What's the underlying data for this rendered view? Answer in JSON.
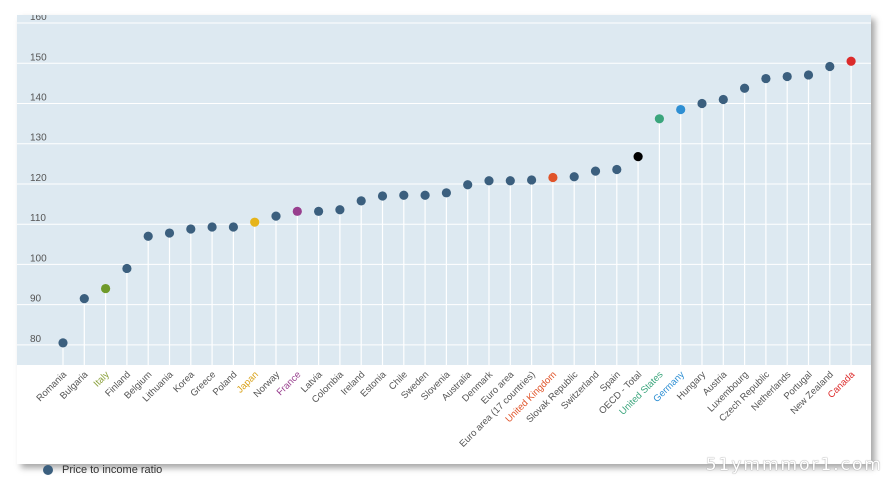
{
  "chart_data": {
    "type": "scatter",
    "title": "",
    "xlabel": "",
    "ylabel": "",
    "ylim": [
      75,
      162
    ],
    "yticks": [
      80,
      90,
      100,
      110,
      120,
      130,
      140,
      150,
      160
    ],
    "grid": true,
    "legend_position": "bottom-left",
    "series": [
      {
        "name": "Price to income ratio",
        "color": "#3b5f7e",
        "categories": [
          "Romania",
          "Bulgaria",
          "Italy",
          "Finland",
          "Belgium",
          "Lithuania",
          "Korea",
          "Greece",
          "Poland",
          "Japan",
          "Norway",
          "France",
          "Latvia",
          "Colombia",
          "Ireland",
          "Estonia",
          "Chile",
          "Sweden",
          "Slovenia",
          "Australia",
          "Denmark",
          "Euro area",
          "Euro area (17 countries)",
          "United Kingdom",
          "Slovak Republic",
          "Switzerland",
          "Spain",
          "OECD - Total",
          "United States",
          "Germany",
          "Hungary",
          "Austria",
          "Luxembourg",
          "Czech Republic",
          "Netherlands",
          "Portugal",
          "New Zealand",
          "Canada"
        ],
        "values": [
          80.5,
          91.5,
          94,
          99,
          107,
          107.8,
          108.8,
          109.3,
          109.3,
          110.5,
          112,
          113.2,
          113.2,
          113.6,
          115.8,
          117,
          117.2,
          117.2,
          117.8,
          119.8,
          120.8,
          120.8,
          121,
          121.6,
          121.8,
          123.2,
          123.6,
          126.8,
          136.2,
          138.5,
          140,
          141,
          143.8,
          146.2,
          146.7,
          147.1,
          149.2,
          150.5
        ]
      }
    ],
    "highlight_colors": {
      "Italy": "#6f9a2a",
      "Japan": "#e6b41a",
      "France": "#983f8e",
      "United Kingdom": "#e0542a",
      "OECD - Total": "#000000",
      "United States": "#3aa57c",
      "Germany": "#2e8fd3",
      "Canada": "#dc2b2b"
    },
    "label_colors": {
      "Italy": "#8aa03a",
      "Japan": "#d9a21a",
      "France": "#983f8e",
      "United Kingdom": "#e0542a",
      "United States": "#3aa57c",
      "Germany": "#2e8fd3",
      "Canada": "#dc2b2b"
    }
  },
  "legend": {
    "label": "Price to income ratio",
    "color": "#3b5f7e"
  },
  "watermark": "51ymmmor1.com",
  "colors": {
    "plot_background": "#dde9f1",
    "gridline": "#ffffff",
    "tick_text": "#555555",
    "label_text": "#555555"
  }
}
